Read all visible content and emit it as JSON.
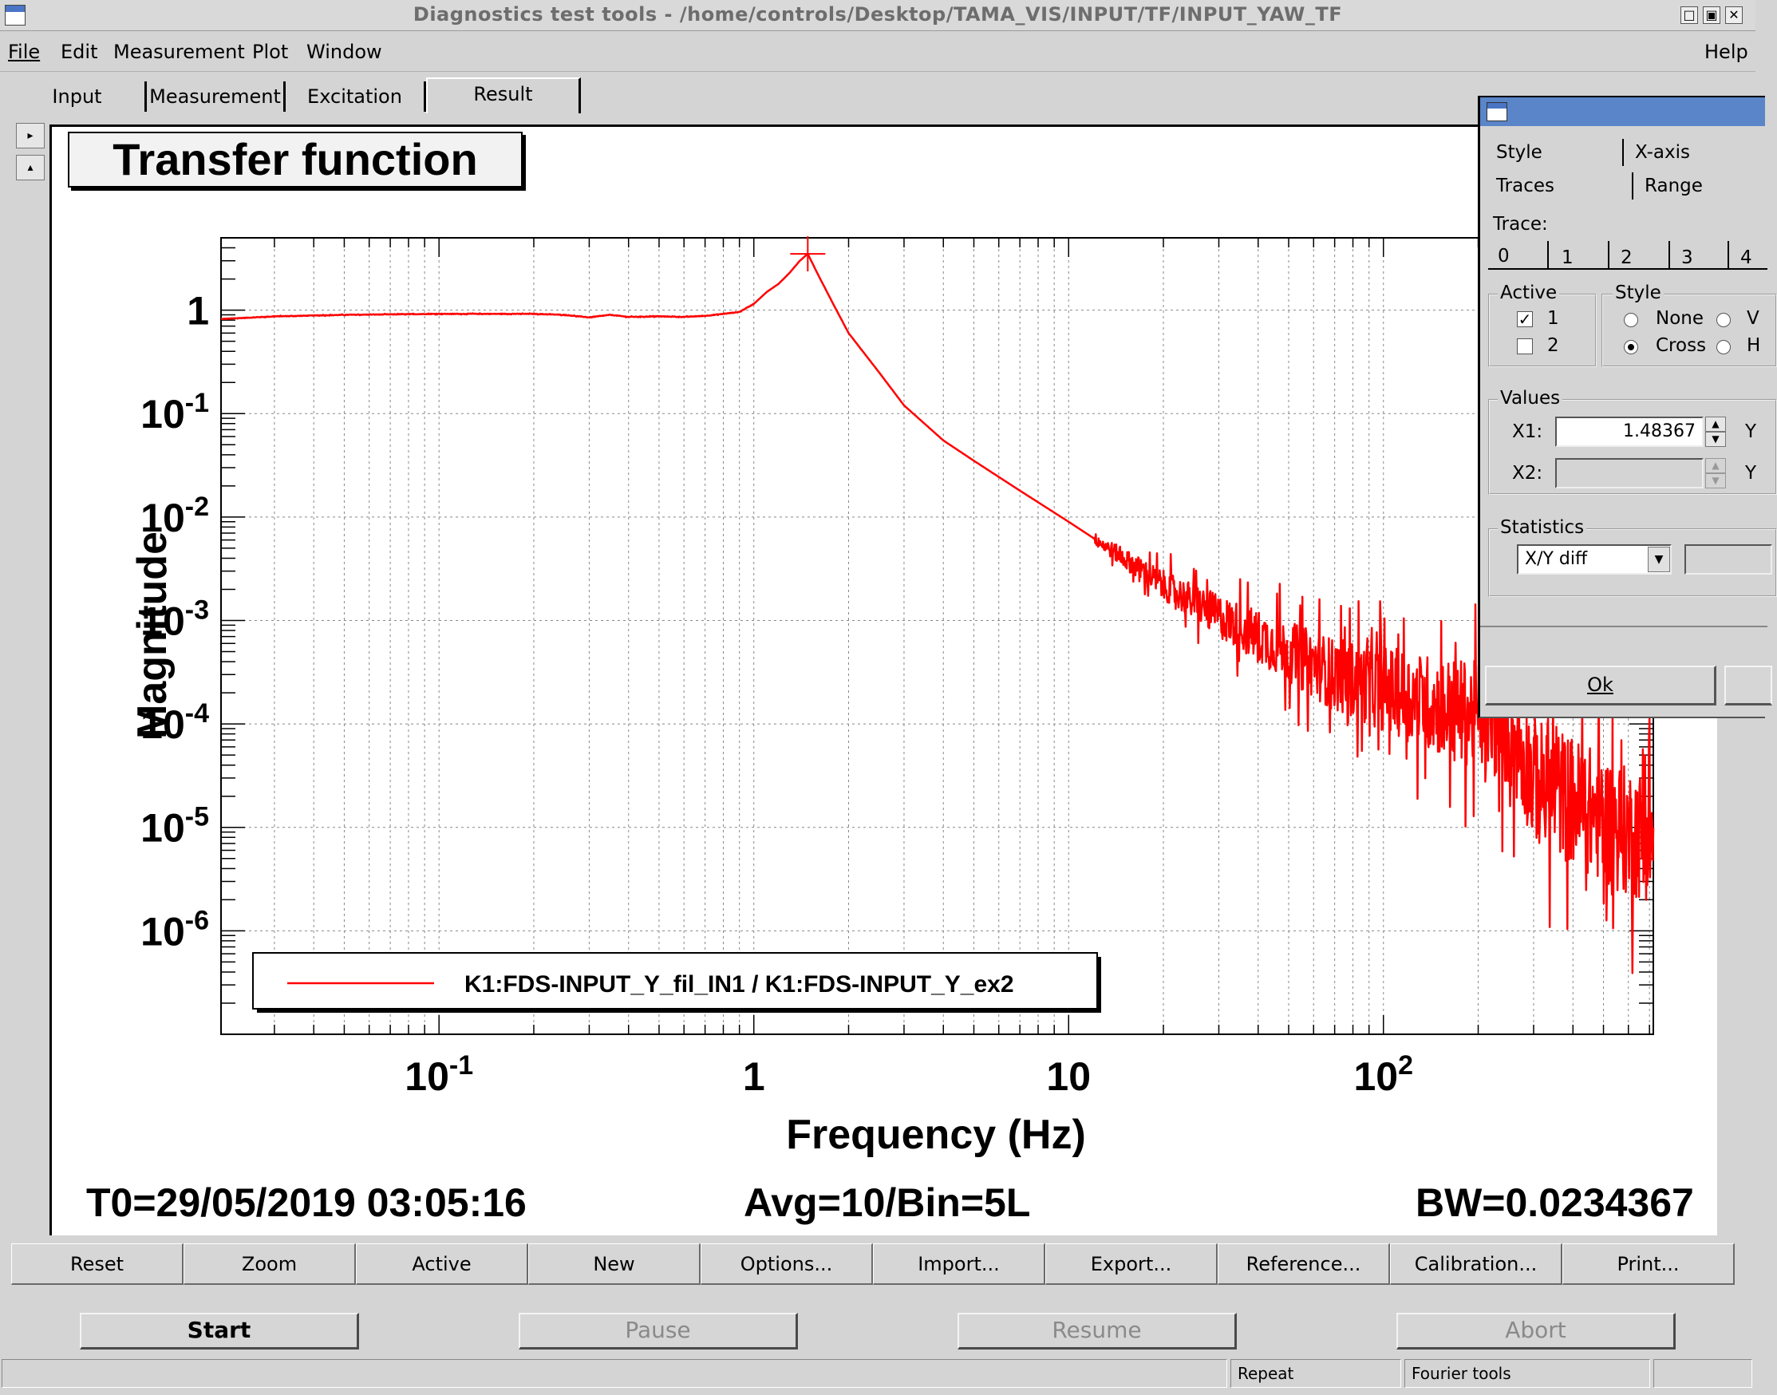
{
  "window": {
    "title": "Diagnostics test tools - /home/controls/Desktop/TAMA_VIS/INPUT/TF/INPUT_YAW_TF",
    "controls": [
      "□",
      "▣",
      "✕"
    ]
  },
  "menu": {
    "file": "File",
    "edit": "Edit",
    "measurement": "Measurement",
    "plot": "Plot",
    "window": "Window",
    "help": "Help"
  },
  "tabs": [
    "Input",
    "Measurement",
    "Excitation",
    "Result"
  ],
  "plot_title": "Transfer function",
  "info": {
    "t0": "T0=29/05/2019 03:05:16",
    "avg": "Avg=10/Bin=5L",
    "bw": "BW=0.0234367"
  },
  "chart_data": {
    "type": "line",
    "title": "Transfer function",
    "xlabel": "Frequency (Hz)",
    "ylabel": "Magnitude",
    "xscale": "log",
    "yscale": "log",
    "xlim": [
      0.0203,
      720
    ],
    "ylim": [
      1e-07,
      5
    ],
    "x_ticks": [
      {
        "value": 0.1,
        "base": "10",
        "exp": "-1"
      },
      {
        "value": 1,
        "base": "1",
        "exp": ""
      },
      {
        "value": 10,
        "base": "10",
        "exp": ""
      },
      {
        "value": 100,
        "base": "10",
        "exp": "2"
      }
    ],
    "y_ticks": [
      {
        "value": 1,
        "base": "1",
        "exp": ""
      },
      {
        "value": 0.1,
        "base": "10",
        "exp": "-1"
      },
      {
        "value": 0.01,
        "base": "10",
        "exp": "-2"
      },
      {
        "value": 0.001,
        "base": "10",
        "exp": "-3"
      },
      {
        "value": 0.0001,
        "base": "10",
        "exp": "-4"
      },
      {
        "value": 1e-05,
        "base": "10",
        "exp": "-5"
      },
      {
        "value": 1e-06,
        "base": "10",
        "exp": "-6"
      }
    ],
    "grid": true,
    "legend_position": "bottom-left",
    "series": [
      {
        "name": "K1:FDS-INPUT_Y_fil_IN1 / K1:FDS-INPUT_Y_ex2",
        "color": "#ff0000",
        "points": [
          [
            0.0203,
            0.82
          ],
          [
            0.03,
            0.87
          ],
          [
            0.05,
            0.9
          ],
          [
            0.1,
            0.92
          ],
          [
            0.2,
            0.92
          ],
          [
            0.25,
            0.9
          ],
          [
            0.3,
            0.85
          ],
          [
            0.35,
            0.9
          ],
          [
            0.4,
            0.86
          ],
          [
            0.5,
            0.87
          ],
          [
            0.6,
            0.86
          ],
          [
            0.7,
            0.88
          ],
          [
            0.8,
            0.92
          ],
          [
            0.9,
            0.96
          ],
          [
            1.0,
            1.15
          ],
          [
            1.1,
            1.5
          ],
          [
            1.2,
            1.8
          ],
          [
            1.3,
            2.3
          ],
          [
            1.4,
            3.0
          ],
          [
            1.48367,
            3.5
          ],
          [
            1.6,
            2.2
          ],
          [
            1.8,
            1.1
          ],
          [
            2.0,
            0.6
          ],
          [
            2.5,
            0.25
          ],
          [
            3.0,
            0.12
          ],
          [
            4.0,
            0.055
          ],
          [
            5.0,
            0.035
          ],
          [
            7.0,
            0.018
          ],
          [
            10.0,
            0.009
          ],
          [
            15.0,
            0.004
          ],
          [
            20.0,
            0.0022
          ],
          [
            30.0,
            0.0011
          ],
          [
            40.0,
            0.0007
          ],
          [
            50.0,
            0.0005
          ],
          [
            70.0,
            0.0003
          ],
          [
            100.0,
            0.00022
          ],
          [
            150.0,
            0.00015
          ],
          [
            200.0,
            0.00012
          ],
          [
            250.0,
            9e-05
          ],
          [
            300.0,
            3e-05
          ],
          [
            400.0,
            1.8e-05
          ],
          [
            500.0,
            1.2e-05
          ],
          [
            600.0,
            9e-06
          ],
          [
            720.0,
            8e-06
          ]
        ]
      }
    ],
    "cursor": {
      "x": 1.48367,
      "y": 3.5,
      "marker": "cross"
    }
  },
  "buttons": [
    "Reset",
    "Zoom",
    "Active",
    "New",
    "Options...",
    "Import...",
    "Export...",
    "Reference...",
    "Calibration...",
    "Print..."
  ],
  "run_buttons": {
    "start": "Start",
    "pause": "Pause",
    "resume": "Resume",
    "abort": "Abort"
  },
  "status": {
    "repeat": "Repeat",
    "fourier": "Fourier tools"
  },
  "dialog": {
    "tabs_row1": [
      "Style",
      "X-axis"
    ],
    "tabs_row2": [
      "Traces",
      "Range"
    ],
    "trace_label": "Trace:",
    "trace_tabs": [
      "0",
      "1",
      "2",
      "3",
      "4"
    ],
    "active_label": "Active",
    "active_items": [
      "1",
      "2"
    ],
    "style_label": "Style",
    "style_items": [
      "None",
      "Cross"
    ],
    "style_items_right": [
      "V",
      "H"
    ],
    "values_label": "Values",
    "x1_label": "X1:",
    "x1_value": "1.48367",
    "x2_label": "X2:",
    "y_label": "Y",
    "statistics_label": "Statistics",
    "statistics_value": "X/Y diff",
    "ok": "Ok"
  }
}
